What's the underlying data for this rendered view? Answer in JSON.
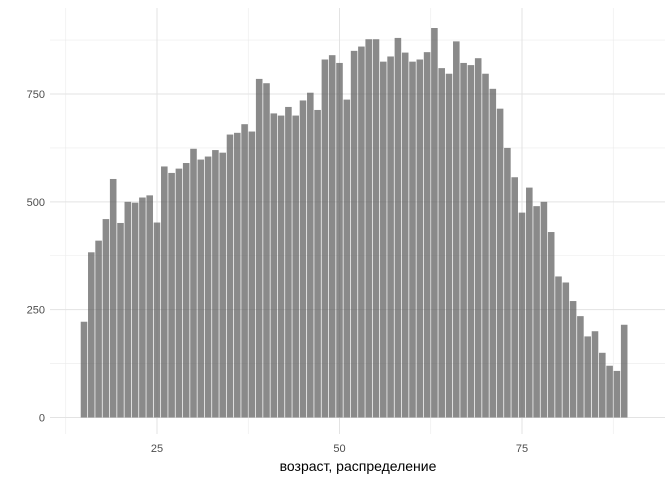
{
  "chart_data": {
    "type": "bar",
    "title": "",
    "xlabel": "возраст, распределение",
    "ylabel": "",
    "xlim": [
      10,
      94
    ],
    "ylim": [
      0,
      950
    ],
    "x_ticks": [
      25,
      50,
      75
    ],
    "y_ticks": [
      0,
      250,
      500,
      750
    ],
    "grid": true,
    "legend": "none",
    "bar_color": "#595959",
    "bar_opacity": 0.7,
    "x": [
      15,
      16,
      17,
      18,
      19,
      20,
      21,
      22,
      23,
      24,
      25,
      26,
      27,
      28,
      29,
      30,
      31,
      32,
      33,
      34,
      35,
      36,
      37,
      38,
      39,
      40,
      41,
      42,
      43,
      44,
      45,
      46,
      47,
      48,
      49,
      50,
      51,
      52,
      53,
      54,
      55,
      56,
      57,
      58,
      59,
      60,
      61,
      62,
      63,
      64,
      65,
      66,
      67,
      68,
      69,
      70,
      71,
      72,
      73,
      74,
      75,
      76,
      77,
      78,
      79,
      80,
      81,
      82,
      83,
      84,
      85,
      86,
      87,
      88,
      89,
      90
    ],
    "values": [
      222,
      383,
      410,
      460,
      553,
      451,
      500,
      498,
      510,
      515,
      452,
      582,
      567,
      577,
      590,
      623,
      598,
      605,
      620,
      614,
      656,
      660,
      680,
      663,
      785,
      775,
      705,
      700,
      720,
      700,
      735,
      753,
      713,
      830,
      840,
      822,
      737,
      850,
      860,
      877,
      877,
      825,
      837,
      880,
      846,
      825,
      830,
      847,
      903,
      810,
      797,
      872,
      822,
      817,
      833,
      797,
      762,
      716,
      625,
      557,
      475,
      533,
      490,
      500,
      430,
      327,
      313,
      270,
      235,
      188,
      200,
      150,
      120,
      108,
      215,
      0
    ]
  }
}
